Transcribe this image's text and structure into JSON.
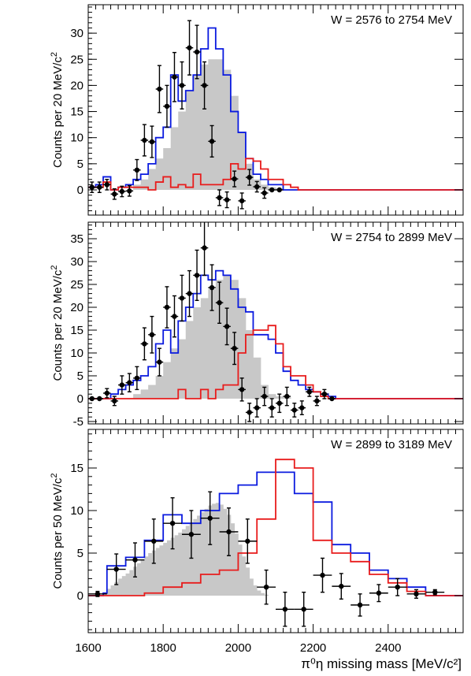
{
  "chart_data": [
    {
      "type": "histogram",
      "annotation": "W = 2576 to 2754 MeV",
      "ylabel": "Counts per 20 MeV/c",
      "ylabel_sup": "2",
      "xlim": [
        1600,
        2600
      ],
      "ylim": [
        -5,
        36
      ],
      "y_ticks": [
        0,
        5,
        10,
        15,
        20,
        25,
        30
      ],
      "binwidth": 20,
      "bins_start": 1600,
      "colors": {
        "data": "#000000",
        "blue": "#0a1adf",
        "red": "#e81c1c",
        "fill": "#c8c8c8"
      },
      "series": [
        {
          "kind": "filled-histogram",
          "values": [
            0,
            0,
            0,
            0,
            0,
            0,
            1,
            2,
            4,
            6,
            8,
            12,
            15,
            19,
            22,
            24,
            25,
            25,
            23,
            18,
            11,
            5,
            2,
            1,
            0.5,
            0.3,
            0,
            0,
            0,
            0,
            0,
            0,
            0,
            0,
            0,
            0,
            0,
            0,
            0,
            0,
            0,
            0,
            0,
            0,
            0,
            0,
            0,
            0,
            0,
            0
          ]
        },
        {
          "kind": "step-line",
          "color": "blue",
          "values": [
            0.5,
            1,
            2.5,
            0,
            0.5,
            1,
            2,
            3,
            5,
            10,
            12,
            22,
            17,
            19,
            22,
            27,
            31,
            27,
            22,
            15,
            11,
            6,
            3,
            2,
            1,
            1,
            0,
            0,
            0,
            0,
            0,
            0,
            0,
            0,
            0,
            0,
            0,
            0,
            0,
            0,
            0,
            0,
            0,
            0,
            0,
            0,
            0,
            0,
            0,
            0
          ]
        },
        {
          "kind": "step-line",
          "color": "red",
          "values": [
            0.5,
            0.5,
            1.5,
            0,
            0.5,
            0.5,
            0.5,
            0.5,
            0,
            1.5,
            2.5,
            0.5,
            1,
            0.5,
            3,
            1,
            1,
            1,
            2,
            5,
            4,
            6,
            5.5,
            4,
            2,
            2,
            1,
            0.5,
            0,
            0,
            0,
            0,
            0,
            0,
            0,
            0,
            0,
            0,
            0,
            0,
            0,
            0,
            0,
            0,
            0,
            0,
            0,
            0,
            0,
            0
          ]
        },
        {
          "kind": "points",
          "x": [
            1610,
            1630,
            1650,
            1670,
            1690,
            1710,
            1730,
            1750,
            1770,
            1790,
            1810,
            1830,
            1850,
            1870,
            1890,
            1910,
            1930,
            1950,
            1970,
            1990,
            2010,
            2030,
            2050,
            2070,
            2090,
            2110
          ],
          "y": [
            0.5,
            0.5,
            1,
            -0.8,
            -0.3,
            -0.2,
            3.8,
            9.5,
            9.2,
            19.3,
            16,
            21.6,
            20,
            27.2,
            26.4,
            20,
            9.3,
            -1.5,
            -1.9,
            2.1,
            -2.1,
            2.4,
            0.6,
            -0.6,
            0,
            0
          ],
          "err": [
            1,
            1,
            1,
            1,
            1,
            1,
            2,
            3,
            3,
            4.5,
            4,
            4.7,
            4.5,
            5.2,
            5.1,
            4.5,
            3,
            1.5,
            1.5,
            1.5,
            1.5,
            1.5,
            1,
            1,
            0,
            0
          ]
        }
      ]
    },
    {
      "type": "histogram",
      "annotation": "W = 2754 to 2899 MeV",
      "ylabel": "Counts per 20 MeV/c",
      "ylabel_sup": "2",
      "xlim": [
        1600,
        2600
      ],
      "ylim": [
        -6,
        40
      ],
      "y_ticks": [
        -5,
        0,
        5,
        10,
        15,
        20,
        25,
        30,
        35
      ],
      "binwidth": 20,
      "bins_start": 1600,
      "series": [
        {
          "kind": "filled-histogram",
          "values": [
            0,
            0,
            0,
            0,
            0,
            0,
            1,
            2,
            3,
            5,
            8,
            11,
            13,
            17,
            20,
            22,
            24,
            26,
            27,
            26,
            22,
            15,
            9,
            3,
            1,
            0.5,
            0.3,
            0,
            0,
            0,
            0,
            0,
            0,
            0,
            0,
            0,
            0,
            0,
            0,
            0,
            0,
            0,
            0,
            0,
            0,
            0,
            0,
            0,
            0,
            0
          ]
        },
        {
          "kind": "step-line",
          "color": "blue",
          "values": [
            0,
            0,
            0,
            1,
            2,
            3,
            4,
            5,
            7,
            12,
            15,
            10,
            17,
            20,
            23,
            27,
            26,
            28,
            27,
            24,
            20,
            19,
            14,
            14,
            13,
            10,
            6,
            4,
            3,
            2,
            1.5,
            1,
            0.5,
            0,
            0,
            0,
            0,
            0,
            0,
            0,
            0,
            0,
            0,
            0,
            0,
            0,
            0,
            0,
            0,
            0
          ]
        },
        {
          "kind": "step-line",
          "color": "red",
          "values": [
            0,
            0,
            0,
            0,
            0,
            0,
            0,
            0,
            0,
            0,
            0,
            0,
            2,
            0,
            0,
            2,
            0,
            2,
            3,
            3,
            10,
            14,
            15,
            15,
            16,
            12,
            7,
            5,
            5,
            3,
            1.5,
            0.5,
            0,
            0,
            0,
            0,
            0,
            0,
            0,
            0,
            0,
            0,
            0,
            0,
            0,
            0,
            0,
            0,
            0,
            0
          ]
        },
        {
          "kind": "points",
          "x": [
            1610,
            1630,
            1650,
            1670,
            1690,
            1710,
            1730,
            1750,
            1770,
            1790,
            1810,
            1830,
            1850,
            1870,
            1890,
            1910,
            1930,
            1950,
            1970,
            1990,
            2010,
            2030,
            2050,
            2070,
            2090,
            2110,
            2130,
            2150,
            2170,
            2190,
            2210,
            2230,
            2250
          ],
          "y": [
            0,
            0,
            1.2,
            -0.5,
            3,
            3.5,
            4.5,
            12,
            14,
            8,
            20,
            18,
            22,
            23,
            27,
            33,
            24.3,
            21,
            15.8,
            11,
            2,
            -3,
            -2,
            0.5,
            -2,
            -1,
            0.5,
            -2.5,
            -2,
            1.5,
            -0.5,
            1,
            0
          ],
          "err": [
            0,
            0,
            1,
            1,
            2,
            2,
            2.5,
            3.5,
            4,
            3,
            4.5,
            4.5,
            5,
            5,
            5.5,
            6,
            5,
            4.5,
            4,
            3.5,
            2.5,
            2,
            2,
            2,
            2,
            2,
            2,
            1.5,
            1.5,
            1,
            1,
            1,
            0
          ]
        }
      ]
    },
    {
      "type": "histogram",
      "annotation": "W = 2899 to 3189 MeV",
      "ylabel": "Counts per 50 MeV/c",
      "ylabel_sup": "2",
      "xlabel": "π⁰η missing mass [MeV/c²]",
      "xlim": [
        1600,
        2600
      ],
      "ylim": [
        -5,
        19
      ],
      "x_ticks": [
        1600,
        1800,
        2000,
        2200,
        2400
      ],
      "y_ticks": [
        0,
        5,
        10,
        15
      ],
      "series": [
        {
          "kind": "filled-histogram",
          "binwidth": 10,
          "bins_start": 1640,
          "values": [
            0.3,
            0.8,
            1.2,
            1.6,
            2,
            2.3,
            2.6,
            3,
            3.4,
            3.8,
            4.2,
            4.6,
            5,
            5.3,
            5.6,
            5.9,
            6.2,
            6.5,
            6.8,
            7.1,
            7.4,
            7.8,
            8.2,
            8.6,
            9,
            9.4,
            9.8,
            10.2,
            10.6,
            10.8,
            10.9,
            10.7,
            10.2,
            9.5,
            8.5,
            7.3,
            6,
            4.6,
            3.3,
            2,
            1.2,
            0.6,
            0.3,
            0.1,
            0
          ]
        },
        {
          "kind": "step-line",
          "color": "blue",
          "edges": [
            1600,
            1640,
            1650,
            1700,
            1750,
            1800,
            1850,
            1900,
            1950,
            2000,
            2050,
            2100,
            2150,
            2200,
            2250,
            2300,
            2350,
            2400,
            2450,
            2500,
            2550
          ],
          "values": [
            0,
            0.3,
            3.5,
            4.5,
            6.5,
            9.5,
            8.5,
            10,
            12,
            13,
            14.5,
            14.5,
            12,
            11,
            6,
            5,
            3,
            2,
            1,
            0
          ]
        },
        {
          "kind": "step-line",
          "color": "red",
          "edges": [
            1600,
            1640,
            1650,
            1700,
            1750,
            1800,
            1850,
            1900,
            1950,
            2000,
            2050,
            2100,
            2150,
            2200,
            2250,
            2300,
            2350,
            2400,
            2450,
            2500,
            2550
          ],
          "values": [
            0,
            0,
            0,
            0,
            0.3,
            1,
            1.5,
            2.5,
            3,
            5,
            9,
            16,
            15,
            6.5,
            5,
            4,
            2.5,
            1.5,
            0.5,
            0
          ]
        },
        {
          "kind": "points",
          "x": [
            1625,
            1675,
            1725,
            1775,
            1825,
            1875,
            1925,
            1975,
            2025,
            2075,
            2125,
            2175,
            2225,
            2275,
            2325,
            2375,
            2425,
            2475,
            2525
          ],
          "y": [
            0.2,
            3.1,
            4.2,
            6.4,
            8.5,
            7.2,
            9.1,
            7.5,
            6.4,
            1,
            -1.6,
            -1.6,
            2.4,
            1.1,
            -1.1,
            0.3,
            1,
            0.2,
            0.4
          ],
          "err": [
            0.3,
            1.8,
            2,
            2.6,
            3,
            2.8,
            3.1,
            2.8,
            2.6,
            2,
            2,
            2,
            2,
            1.5,
            1.3,
            1,
            1,
            0.5,
            0.3
          ]
        }
      ]
    }
  ]
}
